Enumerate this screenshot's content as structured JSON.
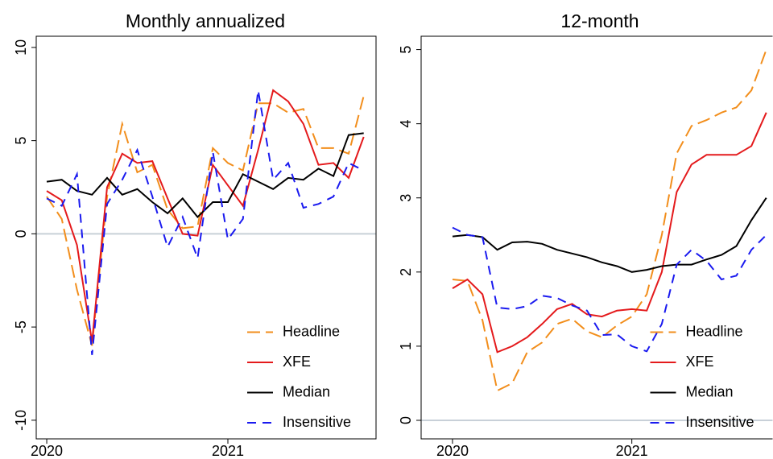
{
  "chart_data": [
    {
      "type": "line",
      "title": "Monthly annualized",
      "x": [
        2020,
        2020.083,
        2020.167,
        2020.25,
        2020.333,
        2020.417,
        2020.5,
        2020.583,
        2020.667,
        2020.75,
        2020.833,
        2020.917,
        2021,
        2021.083,
        2021.167,
        2021.25,
        2021.333,
        2021.417,
        2021.5,
        2021.583,
        2021.667,
        2021.75
      ],
      "xlim": [
        2019.942,
        2021.818
      ],
      "xticks": [
        2020,
        2021
      ],
      "ylim": [
        -11,
        10.6
      ],
      "yticks": [
        -10,
        -5,
        0,
        5,
        10
      ],
      "zero_line": true,
      "legend": "lower right",
      "series": [
        {
          "name": "Headline",
          "color": "#f28e1c",
          "style": "long-dash",
          "values": [
            2.0,
            0.8,
            -3.0,
            -6.0,
            2.0,
            5.9,
            3.3,
            3.7,
            1.3,
            0.3,
            0.4,
            4.6,
            3.8,
            3.4,
            7.0,
            7.0,
            6.5,
            6.7,
            4.6,
            4.6,
            4.3,
            7.4
          ]
        },
        {
          "name": "XFE",
          "color": "#e41a1c",
          "style": "solid",
          "values": [
            2.3,
            1.8,
            -0.6,
            -5.8,
            2.5,
            4.3,
            3.8,
            3.9,
            1.9,
            0.0,
            -0.1,
            3.7,
            2.6,
            1.5,
            4.5,
            7.7,
            7.1,
            5.9,
            3.7,
            3.8,
            3.0,
            5.2
          ]
        },
        {
          "name": "Median",
          "color": "#000000",
          "style": "solid",
          "values": [
            2.8,
            2.9,
            2.3,
            2.1,
            3.0,
            2.1,
            2.4,
            1.7,
            1.1,
            1.9,
            0.9,
            1.7,
            1.7,
            3.2,
            2.8,
            2.4,
            3.0,
            2.9,
            3.5,
            3.1,
            5.3,
            5.4
          ]
        },
        {
          "name": "Insensitive",
          "color": "#1a1aef",
          "style": "dash",
          "values": [
            1.9,
            1.5,
            3.2,
            -6.5,
            1.6,
            2.9,
            4.5,
            2.0,
            -0.7,
            0.9,
            -1.3,
            4.4,
            -0.3,
            0.8,
            7.7,
            2.9,
            3.8,
            1.4,
            1.6,
            2.0,
            3.8,
            3.4
          ]
        }
      ]
    },
    {
      "type": "line",
      "title": "12-month",
      "x": [
        2020,
        2020.083,
        2020.167,
        2020.25,
        2020.333,
        2020.417,
        2020.5,
        2020.583,
        2020.667,
        2020.75,
        2020.833,
        2020.917,
        2021,
        2021.083,
        2021.167,
        2021.25,
        2021.333,
        2021.417,
        2021.5,
        2021.583,
        2021.667,
        2021.75
      ],
      "xlim": [
        2019.825,
        2021.785
      ],
      "xticks": [
        2020,
        2021
      ],
      "ylim": [
        -0.25,
        5.18
      ],
      "yticks": [
        0,
        1,
        2,
        3,
        4,
        5
      ],
      "zero_line": true,
      "legend": "lower right",
      "series": [
        {
          "name": "Headline",
          "color": "#f28e1c",
          "style": "long-dash",
          "values": [
            1.9,
            1.88,
            1.35,
            0.4,
            0.5,
            0.92,
            1.05,
            1.3,
            1.37,
            1.2,
            1.12,
            1.28,
            1.4,
            1.7,
            2.5,
            3.6,
            3.97,
            4.05,
            4.15,
            4.22,
            4.45,
            5.0
          ]
        },
        {
          "name": "XFE",
          "color": "#e41a1c",
          "style": "solid",
          "values": [
            1.78,
            1.9,
            1.7,
            0.92,
            1.0,
            1.12,
            1.3,
            1.5,
            1.57,
            1.43,
            1.4,
            1.48,
            1.5,
            1.48,
            2.0,
            3.08,
            3.45,
            3.58,
            3.58,
            3.58,
            3.7,
            4.15
          ]
        },
        {
          "name": "Median",
          "color": "#000000",
          "style": "solid",
          "values": [
            2.48,
            2.5,
            2.47,
            2.3,
            2.4,
            2.41,
            2.38,
            2.3,
            2.25,
            2.2,
            2.13,
            2.08,
            2.0,
            2.03,
            2.08,
            2.1,
            2.1,
            2.17,
            2.23,
            2.35,
            2.7,
            3.0
          ]
        },
        {
          "name": "Insensitive",
          "color": "#1a1aef",
          "style": "dash",
          "values": [
            2.6,
            2.5,
            2.47,
            1.52,
            1.5,
            1.54,
            1.68,
            1.65,
            1.55,
            1.48,
            1.15,
            1.16,
            1.0,
            0.93,
            1.3,
            2.1,
            2.3,
            2.15,
            1.9,
            1.95,
            2.3,
            2.5
          ]
        }
      ]
    }
  ]
}
